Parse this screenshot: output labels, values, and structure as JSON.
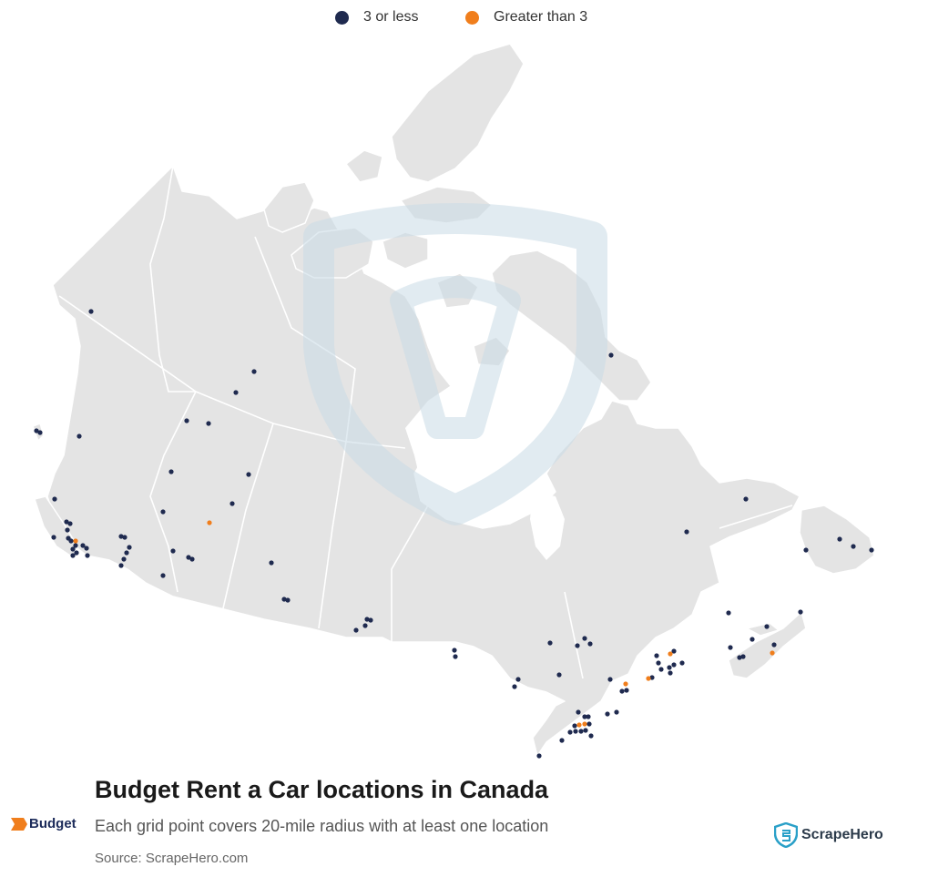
{
  "legend": {
    "items": [
      {
        "label": "3 or less",
        "color": "#1f2a4f"
      },
      {
        "label": "Greater than 3",
        "color": "#f07e1c"
      }
    ]
  },
  "title": "Budget Rent a Car locations in Canada",
  "subtitle": "Each grid point covers 20-mile radius with at least one location",
  "source": "Source: ScrapeHero.com",
  "brand": {
    "name": "Budget",
    "color": "#f07e1c"
  },
  "publisher": {
    "name": "ScrapeHero",
    "color": "#2aa0c8"
  },
  "colors": {
    "land": "#e4e4e4",
    "border": "#ffffff",
    "watermark": "#c9dae6"
  }
}
